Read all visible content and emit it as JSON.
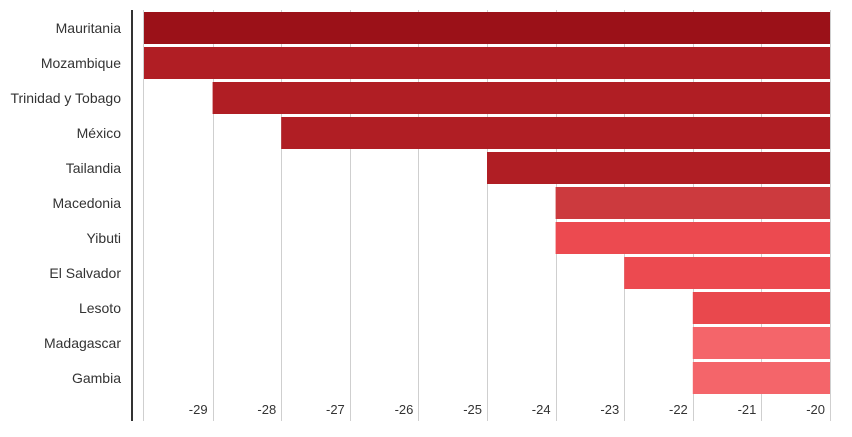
{
  "chart_data": {
    "type": "bar",
    "orientation": "horizontal",
    "title": "",
    "xlabel": "",
    "ylabel": "",
    "categories": [
      "Mauritania",
      "Mozambique",
      "Trinidad y Tobago",
      "México",
      "Tailandia",
      "Macedonia",
      "Yibuti",
      "El Salvador",
      "Lesoto",
      "Madagascar",
      "Gambia"
    ],
    "values": [
      -30,
      -30,
      -29,
      -28,
      -25,
      -24,
      -24,
      -23,
      -22,
      -22,
      -22
    ],
    "bar_colors": [
      "#9b1118",
      "#b01e24",
      "#b01e24",
      "#b01e24",
      "#b01e24",
      "#cc3a3e",
      "#ec4a50",
      "#ec4a50",
      "#e9484d",
      "#f4656a",
      "#f4656a"
    ],
    "xlim": [
      -30,
      -20
    ],
    "x_ticks": [
      "-29",
      "-28",
      "-27",
      "-26",
      "-25",
      "-24",
      "-23",
      "-22",
      "-21",
      "-20"
    ],
    "tick_values": [
      -29,
      -28,
      -27,
      -26,
      -25,
      -24,
      -23,
      -22,
      -21,
      -20
    ],
    "grid": true,
    "legend": "none"
  }
}
